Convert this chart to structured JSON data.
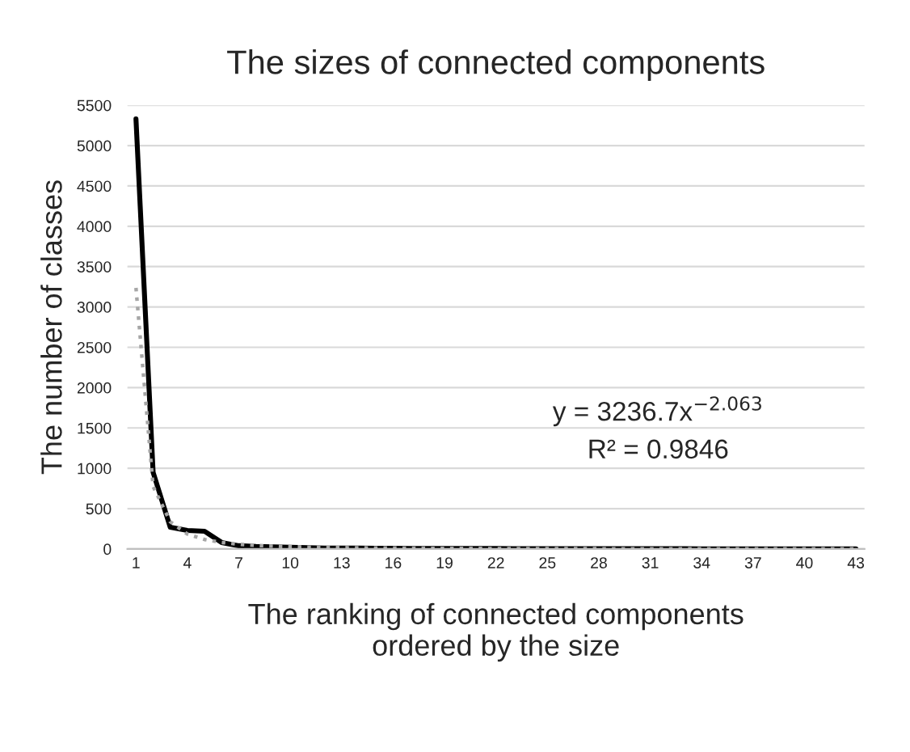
{
  "chart_data": {
    "type": "line",
    "title": "The sizes of connected components",
    "xlabel": "The ranking of connected components\nordered by the size",
    "ylabel": "The number of classes",
    "categories": [
      "1",
      null,
      null,
      "4",
      null,
      null,
      "7",
      null,
      null,
      "10",
      null,
      null,
      "13",
      null,
      null,
      "16",
      null,
      null,
      "19",
      null,
      null,
      "22",
      null,
      null,
      "25",
      null,
      null,
      "28",
      null,
      null,
      "31",
      null,
      null,
      "34",
      null,
      null,
      "37",
      null,
      null,
      "40",
      null,
      null,
      "43"
    ],
    "series": [
      {
        "color": "#000000",
        "line_style": "solid",
        "values": [
          5330,
          950,
          270,
          230,
          220,
          80,
          40,
          30,
          25,
          20,
          15,
          12,
          10,
          10,
          8,
          8,
          7,
          6,
          6,
          5,
          5,
          5,
          4,
          4,
          4,
          4,
          3,
          3,
          3,
          3,
          3,
          3,
          3,
          2,
          2,
          2,
          2,
          2,
          2,
          2,
          2,
          2,
          2
        ]
      },
      {
        "color": "#a6a6a6",
        "line_style": "dotted",
        "values": [
          3237,
          775,
          337,
          185,
          117,
          80,
          58,
          44,
          35,
          28,
          23,
          19,
          16,
          14,
          12,
          11,
          9,
          8,
          7,
          7,
          6,
          5,
          5,
          5,
          4,
          4,
          4,
          3,
          3,
          3,
          3,
          3,
          2,
          2,
          2,
          2,
          2,
          2,
          2,
          2,
          2,
          1,
          1
        ]
      }
    ],
    "ylim": [
      0,
      5500
    ],
    "yticks": [
      0,
      500,
      1000,
      1500,
      2000,
      2500,
      3000,
      3500,
      4000,
      4500,
      5000,
      5500
    ],
    "grid": "y",
    "annotations": [
      "y = 3236.7x$^{−2.063}$",
      "R² = 0.9846"
    ]
  }
}
